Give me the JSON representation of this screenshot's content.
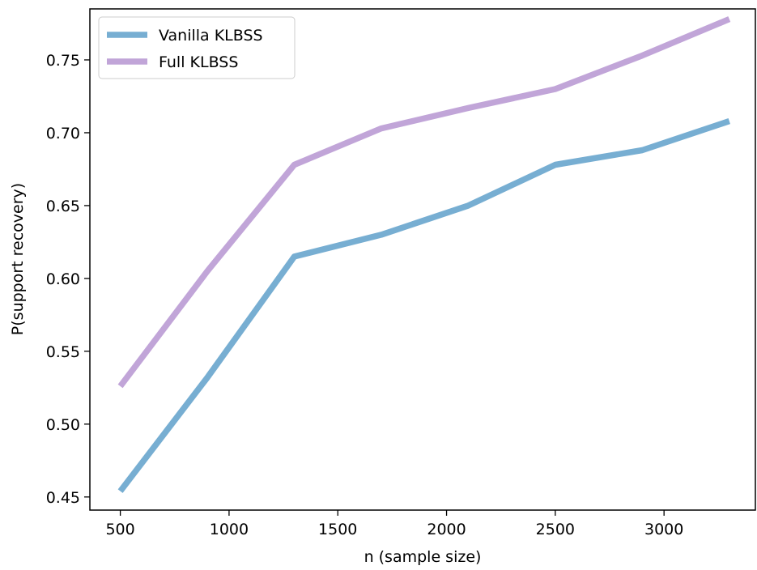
{
  "chart_data": {
    "type": "line",
    "title": "",
    "xlabel": "n (sample size)",
    "ylabel": "P(support recovery)",
    "x": [
      500,
      900,
      1300,
      1700,
      2100,
      2500,
      2900,
      3300
    ],
    "xlim": [
      360,
      3420
    ],
    "ylim": [
      0.441,
      0.785
    ],
    "xticks": [
      500,
      1000,
      1500,
      2000,
      2500,
      3000
    ],
    "yticks": [
      0.45,
      0.5,
      0.55,
      0.6,
      0.65,
      0.7,
      0.75
    ],
    "grid": false,
    "legend_position": "top-left",
    "series": [
      {
        "name": "Vanilla KLBSS",
        "color": "#77aed2",
        "values": [
          0.454,
          0.532,
          0.615,
          0.63,
          0.65,
          0.678,
          0.688,
          0.708
        ]
      },
      {
        "name": "Full KLBSS",
        "color": "#c1a5d8",
        "values": [
          0.526,
          0.605,
          0.678,
          0.703,
          0.717,
          0.73,
          0.753,
          0.778
        ]
      }
    ]
  }
}
